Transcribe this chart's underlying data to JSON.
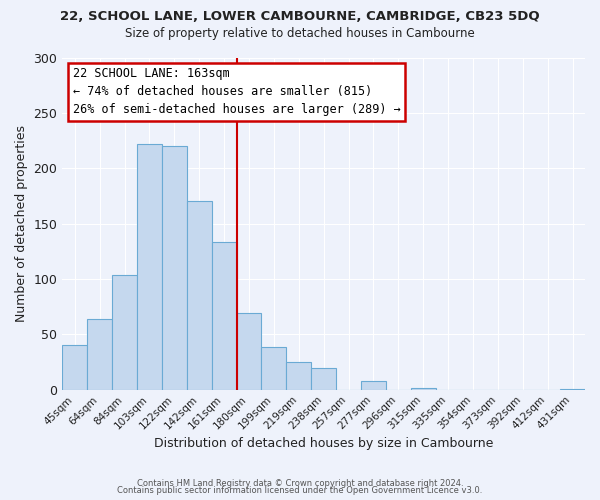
{
  "title_line1": "22, SCHOOL LANE, LOWER CAMBOURNE, CAMBRIDGE, CB23 5DQ",
  "title_line2": "Size of property relative to detached houses in Cambourne",
  "xlabel": "Distribution of detached houses by size in Cambourne",
  "ylabel": "Number of detached properties",
  "categories": [
    "45sqm",
    "64sqm",
    "84sqm",
    "103sqm",
    "122sqm",
    "142sqm",
    "161sqm",
    "180sqm",
    "199sqm",
    "219sqm",
    "238sqm",
    "257sqm",
    "277sqm",
    "296sqm",
    "315sqm",
    "335sqm",
    "354sqm",
    "373sqm",
    "392sqm",
    "412sqm",
    "431sqm"
  ],
  "values": [
    40,
    64,
    104,
    222,
    220,
    170,
    133,
    69,
    39,
    25,
    20,
    0,
    8,
    0,
    2,
    0,
    0,
    0,
    0,
    0,
    1
  ],
  "bar_color": "#c5d8ee",
  "bar_edge_color": "#6aaad4",
  "highlight_line_index": 6,
  "annotation_title": "22 SCHOOL LANE: 163sqm",
  "annotation_line1": "← 74% of detached houses are smaller (815)",
  "annotation_line2": "26% of semi-detached houses are larger (289) →",
  "annotation_box_color": "#ffffff",
  "annotation_box_edge_color": "#cc0000",
  "ylim": [
    0,
    300
  ],
  "yticks": [
    0,
    50,
    100,
    150,
    200,
    250,
    300
  ],
  "footer_line1": "Contains HM Land Registry data © Crown copyright and database right 2024.",
  "footer_line2": "Contains public sector information licensed under the Open Government Licence v3.0.",
  "bg_color": "#eef2fb",
  "plot_bg_color": "#eef2fb",
  "grid_color": "#ffffff",
  "title_color": "#222222",
  "label_color": "#222222"
}
